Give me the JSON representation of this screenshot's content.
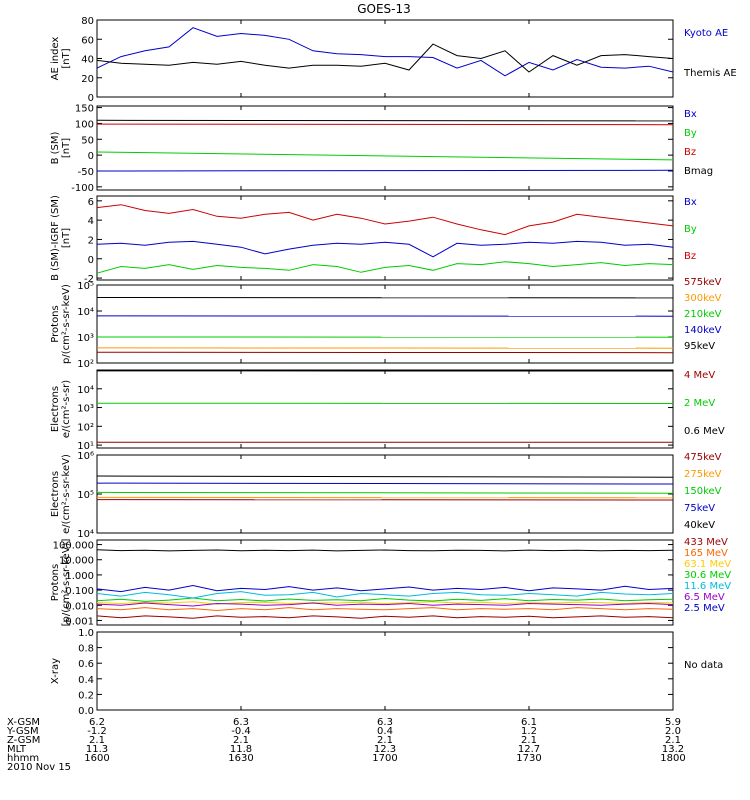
{
  "title": "GOES-13",
  "x_ticks": [
    "1600",
    "1630",
    "1700",
    "1730",
    "1800"
  ],
  "ephemeris": {
    "rows": [
      {
        "label": "X-GSM",
        "values": [
          "6.2",
          "6.3",
          "6.3",
          "6.1",
          "5.9"
        ]
      },
      {
        "label": "Y-GSM",
        "values": [
          "-1.2",
          "-0.4",
          "0.4",
          "1.2",
          "2.0"
        ]
      },
      {
        "label": "Z-GSM",
        "values": [
          "2.1",
          "2.1",
          "2.1",
          "2.1",
          "2.1"
        ]
      },
      {
        "label": "MLT",
        "values": [
          "11.3",
          "11.8",
          "12.3",
          "12.7",
          "13.2"
        ]
      },
      {
        "label": "hhmm",
        "values": [
          "1600",
          "1630",
          "1700",
          "1730",
          "1800"
        ]
      }
    ],
    "date": "2010 Nov 15"
  },
  "chart_data": [
    {
      "id": "ae",
      "type": "line",
      "ylabel": [
        "AE index",
        "[nT]"
      ],
      "ylim": [
        0,
        80
      ],
      "yticks": [
        {
          "v": 0,
          "t": "0"
        },
        {
          "v": 20,
          "t": "20"
        },
        {
          "v": 40,
          "t": "40"
        },
        {
          "v": 60,
          "t": "60"
        },
        {
          "v": 80,
          "t": "80"
        }
      ],
      "x": [
        0,
        5,
        10,
        15,
        20,
        25,
        30,
        35,
        40,
        45,
        50,
        55,
        60,
        65,
        70,
        75,
        80,
        85,
        90,
        95,
        100,
        105,
        110,
        115,
        120
      ],
      "series": [
        {
          "name": "Kyoto AE",
          "color": "#0000cc",
          "values": [
            30,
            42,
            48,
            52,
            72,
            63,
            66,
            64,
            60,
            48,
            45,
            44,
            42,
            42,
            41,
            30,
            38,
            22,
            36,
            28,
            39,
            31,
            30,
            32,
            26
          ]
        },
        {
          "name": "Themis AE",
          "color": "#000000",
          "values": [
            38,
            35,
            34,
            33,
            36,
            34,
            37,
            33,
            30,
            33,
            33,
            32,
            35,
            28,
            55,
            43,
            40,
            48,
            26,
            43,
            33,
            43,
            44,
            42,
            40
          ]
        }
      ]
    },
    {
      "id": "bsm",
      "type": "line",
      "ylabel": [
        "B (SM)",
        "[nT]"
      ],
      "ylim": [
        -110,
        155
      ],
      "yticks": [
        {
          "v": -100,
          "t": "-100"
        },
        {
          "v": -50,
          "t": "-50"
        },
        {
          "v": 0,
          "t": "0"
        },
        {
          "v": 50,
          "t": "50"
        },
        {
          "v": 100,
          "t": "100"
        },
        {
          "v": 150,
          "t": "150"
        }
      ],
      "x": [
        0,
        120
      ],
      "series": [
        {
          "name": "Bx",
          "color": "#0000cc",
          "values": [
            -50,
            -48
          ]
        },
        {
          "name": "By",
          "color": "#00cc00",
          "values": [
            10,
            -15
          ]
        },
        {
          "name": "Bz",
          "color": "#cc0000",
          "values": [
            98,
            96
          ]
        },
        {
          "name": "Bmag",
          "color": "#000000",
          "values": [
            110,
            108
          ]
        }
      ]
    },
    {
      "id": "bdiff",
      "type": "line",
      "ylabel": [
        "B (SM)-IGRF (SM)",
        "[nT]"
      ],
      "ylim": [
        -2.2,
        6.5
      ],
      "yticks": [
        {
          "v": -2,
          "t": "-2"
        },
        {
          "v": 0,
          "t": "0"
        },
        {
          "v": 2,
          "t": "2"
        },
        {
          "v": 4,
          "t": "4"
        },
        {
          "v": 6,
          "t": "6"
        }
      ],
      "x": [
        0,
        5,
        10,
        15,
        20,
        25,
        30,
        35,
        40,
        45,
        50,
        55,
        60,
        65,
        70,
        75,
        80,
        85,
        90,
        95,
        100,
        105,
        110,
        115,
        120
      ],
      "series": [
        {
          "name": "Bx",
          "color": "#0000cc",
          "values": [
            1.5,
            1.6,
            1.4,
            1.7,
            1.8,
            1.5,
            1.2,
            0.5,
            1.0,
            1.4,
            1.6,
            1.5,
            1.7,
            1.5,
            0.2,
            1.6,
            1.4,
            1.5,
            1.7,
            1.6,
            1.8,
            1.7,
            1.4,
            1.5,
            1.2
          ]
        },
        {
          "name": "By",
          "color": "#00cc00",
          "values": [
            -1.5,
            -0.8,
            -1.0,
            -0.6,
            -1.1,
            -0.7,
            -0.9,
            -1.0,
            -1.2,
            -0.6,
            -0.8,
            -1.4,
            -0.9,
            -0.7,
            -1.2,
            -0.5,
            -0.6,
            -0.3,
            -0.5,
            -0.8,
            -0.6,
            -0.4,
            -0.7,
            -0.5,
            -0.6
          ]
        },
        {
          "name": "Bz",
          "color": "#cc0000",
          "values": [
            5.3,
            5.6,
            5.0,
            4.7,
            5.1,
            4.4,
            4.2,
            4.6,
            4.8,
            4.0,
            4.6,
            4.2,
            3.6,
            3.9,
            4.3,
            3.6,
            3.0,
            2.5,
            3.4,
            3.8,
            4.6,
            4.3,
            4.0,
            3.7,
            3.4
          ]
        }
      ]
    },
    {
      "id": "protons",
      "type": "line",
      "log": true,
      "ylabel": [
        "Protons",
        "p/(cm²-s-sr-keV)"
      ],
      "ylim": [
        100,
        100000
      ],
      "yticks": [
        {
          "v": 100,
          "t": "10²"
        },
        {
          "v": 1000,
          "t": "10³"
        },
        {
          "v": 10000,
          "t": "10⁴"
        },
        {
          "v": 100000,
          "t": "10⁵"
        }
      ],
      "x": [
        0,
        120
      ],
      "series": [
        {
          "name": "575keV",
          "color": "#990000",
          "values": [
            260,
            250
          ]
        },
        {
          "name": "300keV",
          "color": "#ff9900",
          "values": [
            380,
            370
          ]
        },
        {
          "name": "210keV",
          "color": "#00cc00",
          "values": [
            1000,
            980
          ]
        },
        {
          "name": "140keV",
          "color": "#0000cc",
          "values": [
            6500,
            6300
          ]
        },
        {
          "name": "95keV",
          "color": "#000000",
          "values": [
            33000,
            32000
          ]
        }
      ]
    },
    {
      "id": "electrons_mev",
      "type": "line",
      "log": true,
      "ylabel": [
        "Electrons",
        "e/(cm²-s-sr)"
      ],
      "ylim": [
        7,
        100000
      ],
      "yticks": [
        {
          "v": 10,
          "t": "10¹"
        },
        {
          "v": 100,
          "t": "10²"
        },
        {
          "v": 1000,
          "t": "10³"
        },
        {
          "v": 10000,
          "t": "10⁴"
        }
      ],
      "x": [
        0,
        120
      ],
      "series": [
        {
          "name": "4 MeV",
          "color": "#990000",
          "values": [
            14,
            14
          ]
        },
        {
          "name": "2 MeV",
          "color": "#00cc00",
          "values": [
            1700,
            1650
          ]
        },
        {
          "name": "0.6 MeV",
          "color": "#000000",
          "values": [
            90000,
            88000
          ]
        }
      ]
    },
    {
      "id": "electrons_kev",
      "type": "line",
      "log": true,
      "ylabel": [
        "Electrons",
        "e/(cm²-s-sr-keV)"
      ],
      "ylim": [
        10000,
        1000000
      ],
      "yticks": [
        {
          "v": 10000,
          "t": "10⁴"
        },
        {
          "v": 100000,
          "t": "10⁵"
        },
        {
          "v": 1000000,
          "t": "10⁶"
        }
      ],
      "x": [
        0,
        120
      ],
      "series": [
        {
          "name": "475keV",
          "color": "#990000",
          "values": [
            72000,
            70000
          ]
        },
        {
          "name": "275keV",
          "color": "#ff9900",
          "values": [
            82000,
            80000
          ]
        },
        {
          "name": "150keV",
          "color": "#00cc00",
          "values": [
            110000,
            105000
          ]
        },
        {
          "name": "75keV",
          "color": "#0000cc",
          "values": [
            190000,
            180000
          ]
        },
        {
          "name": "40keV",
          "color": "#000000",
          "values": [
            290000,
            270000
          ]
        }
      ]
    },
    {
      "id": "protons_mev",
      "type": "line",
      "log": true,
      "ylabel": [
        "Protons",
        "[p/(cm²-s-sr-keV)]"
      ],
      "ylim": [
        0.0005,
        200
      ],
      "yticks": [
        {
          "v": 0.001,
          "t": "0.001"
        },
        {
          "v": 0.01,
          "t": "0.010"
        },
        {
          "v": 0.1,
          "t": "0.100"
        },
        {
          "v": 1,
          "t": "1.000"
        },
        {
          "v": 10,
          "t": "10.000"
        },
        {
          "v": 100,
          "t": "100.000"
        }
      ],
      "x": [
        0,
        5,
        10,
        15,
        20,
        25,
        30,
        35,
        40,
        45,
        50,
        55,
        60,
        65,
        70,
        75,
        80,
        85,
        90,
        95,
        100,
        105,
        110,
        115,
        120
      ],
      "series": [
        {
          "name": "433 MeV",
          "color": "#990000",
          "values": [
            0.002,
            0.0015,
            0.002,
            0.0017,
            0.0014,
            0.002,
            0.0016,
            0.0018,
            0.0015,
            0.002,
            0.0017,
            0.0014,
            0.0019,
            0.0016,
            0.002,
            0.0015,
            0.0018,
            0.0016,
            0.0019,
            0.0015,
            0.0017,
            0.002,
            0.0016,
            0.0018,
            0.0015
          ]
        },
        {
          "name": "165 MeV",
          "color": "#ff6600",
          "values": [
            0.006,
            0.005,
            0.007,
            0.005,
            0.006,
            0.0045,
            0.006,
            0.005,
            0.007,
            0.005,
            0.006,
            0.0055,
            0.005,
            0.006,
            0.007,
            0.005,
            0.006,
            0.0055,
            0.006,
            0.005,
            0.007,
            0.006,
            0.005,
            0.006,
            0.0055
          ]
        },
        {
          "name": "63.1 MeV",
          "color": "#ffcc00",
          "values": [
            0.015,
            0.013,
            0.016,
            0.014,
            0.017,
            0.012,
            0.015,
            0.016,
            0.013,
            0.015,
            0.014,
            0.016,
            0.013,
            0.015,
            0.017,
            0.014,
            0.016,
            0.013,
            0.015,
            0.014,
            0.016,
            0.015,
            0.013,
            0.016,
            0.014
          ]
        },
        {
          "name": "30.6 MeV",
          "color": "#00cc00",
          "values": [
            0.02,
            0.025,
            0.018,
            0.022,
            0.03,
            0.02,
            0.024,
            0.019,
            0.026,
            0.021,
            0.023,
            0.02,
            0.028,
            0.022,
            0.019,
            0.025,
            0.021,
            0.027,
            0.02,
            0.024,
            0.022,
            0.026,
            0.02,
            0.023,
            0.025
          ]
        },
        {
          "name": "11.6 MeV",
          "color": "#00bbdd",
          "values": [
            0.06,
            0.04,
            0.07,
            0.05,
            0.03,
            0.06,
            0.08,
            0.045,
            0.05,
            0.07,
            0.035,
            0.06,
            0.05,
            0.04,
            0.06,
            0.07,
            0.05,
            0.045,
            0.06,
            0.05,
            0.04,
            0.07,
            0.055,
            0.05,
            0.06
          ]
        },
        {
          "name": "6.5 MeV",
          "color": "#9900cc",
          "values": [
            0.012,
            0.01,
            0.014,
            0.011,
            0.009,
            0.013,
            0.012,
            0.01,
            0.011,
            0.014,
            0.01,
            0.012,
            0.011,
            0.013,
            0.01,
            0.012,
            0.011,
            0.01,
            0.013,
            0.012,
            0.011,
            0.01,
            0.012,
            0.013,
            0.011
          ]
        },
        {
          "name": "2.5 MeV",
          "color": "#0000cc",
          "values": [
            0.12,
            0.08,
            0.15,
            0.1,
            0.2,
            0.09,
            0.13,
            0.11,
            0.17,
            0.1,
            0.14,
            0.09,
            0.12,
            0.16,
            0.1,
            0.13,
            0.11,
            0.15,
            0.09,
            0.14,
            0.12,
            0.1,
            0.18,
            0.11,
            0.13
          ]
        },
        {
          "name": "",
          "color": "#000000",
          "values": [
            45,
            40,
            42,
            38,
            41,
            44,
            39,
            42,
            40,
            43,
            38,
            41,
            44,
            40,
            39,
            42,
            41,
            38,
            43,
            40,
            42,
            39,
            41,
            40,
            42
          ]
        }
      ]
    },
    {
      "id": "xray",
      "type": "line",
      "ylabel": [
        "X-ray",
        ""
      ],
      "ylim": [
        0,
        1
      ],
      "yticks": [
        {
          "v": 0,
          "t": "0.0"
        },
        {
          "v": 0.2,
          "t": "0.2"
        },
        {
          "v": 0.4,
          "t": "0.4"
        },
        {
          "v": 0.6,
          "t": "0.6"
        },
        {
          "v": 0.8,
          "t": "0.8"
        },
        {
          "v": 1,
          "t": "1.0"
        }
      ],
      "x": [],
      "series": [],
      "note": "No data"
    }
  ]
}
